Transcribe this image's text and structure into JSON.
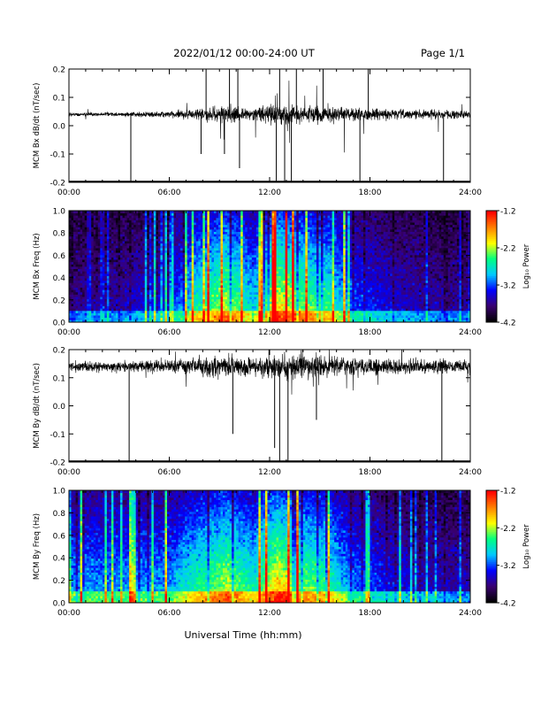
{
  "header": {
    "title": "2022/01/12  00:00-24:00 UT",
    "page": "Page 1/1"
  },
  "xlabel": "Universal Time (hh:mm)",
  "time_ticks": [
    "00:00",
    "06:00",
    "12:00",
    "18:00",
    "24:00"
  ],
  "colorbar": {
    "label": "Log₁₀ Power",
    "ticks": [
      "-1.2",
      "-2.2",
      "-3.2",
      "-4.2"
    ],
    "range": [
      -4.2,
      -1.2
    ],
    "colormap": [
      "#000000",
      "#3a0070",
      "#0000ff",
      "#00c8ff",
      "#00ff80",
      "#ffff00",
      "#ff8000",
      "#ff0000"
    ]
  },
  "chart_data": [
    {
      "type": "line",
      "name": "bx_dbdt",
      "ylabel": "MCM Bx dB/dt (nT/sec)",
      "xlim": [
        0,
        24
      ],
      "ylim": [
        -0.2,
        0.2
      ],
      "yticks": [
        "-0.2",
        "-0.1",
        "0.0",
        "0.1",
        "0.2"
      ],
      "baseline": 0.04,
      "noise": 0.015,
      "activity": [
        [
          0,
          0.3
        ],
        [
          3,
          0.3
        ],
        [
          6,
          0.5
        ],
        [
          8,
          1.0
        ],
        [
          9.5,
          1.4
        ],
        [
          11,
          0.9
        ],
        [
          12.5,
          1.6
        ],
        [
          14,
          1.3
        ],
        [
          15.5,
          1.2
        ],
        [
          17,
          1.0
        ],
        [
          19,
          0.8
        ],
        [
          21,
          0.7
        ],
        [
          24,
          0.6
        ]
      ],
      "spikes": [
        [
          3.7,
          -0.2
        ],
        [
          7.9,
          -0.1
        ],
        [
          8.2,
          0.2
        ],
        [
          9.3,
          -0.1
        ],
        [
          9.6,
          0.2
        ],
        [
          10.1,
          0.2
        ],
        [
          10.2,
          -0.15
        ],
        [
          12.4,
          -0.2
        ],
        [
          12.6,
          0.2
        ],
        [
          12.9,
          -0.2
        ],
        [
          13.3,
          -0.2
        ],
        [
          13.6,
          0.2
        ],
        [
          15.2,
          0.2
        ],
        [
          17.4,
          -0.2
        ],
        [
          17.9,
          0.2
        ],
        [
          22.4,
          -0.2
        ]
      ]
    },
    {
      "type": "heatmap",
      "name": "bx_freq",
      "ylabel": "MCM Bx Freq (Hz)",
      "xlim": [
        0,
        24
      ],
      "ylim": [
        0,
        1
      ],
      "yticks": [
        "0.0",
        "0.2",
        "0.4",
        "0.6",
        "0.8",
        "1.0"
      ],
      "zlim": [
        -4.2,
        -1.2
      ],
      "activity": [
        [
          0,
          0.3
        ],
        [
          3,
          0.35
        ],
        [
          6,
          0.5
        ],
        [
          7.5,
          0.9
        ],
        [
          9.5,
          1.2
        ],
        [
          11,
          0.8
        ],
        [
          12.5,
          1.3
        ],
        [
          14,
          1.1
        ],
        [
          15.5,
          1.0
        ],
        [
          17,
          0.6
        ],
        [
          19,
          0.45
        ],
        [
          21,
          0.35
        ],
        [
          24,
          0.3
        ]
      ]
    },
    {
      "type": "line",
      "name": "by_dbdt",
      "ylabel": "MCM By dB/dt (nT/sec)",
      "xlim": [
        0,
        24
      ],
      "ylim": [
        -0.2,
        0.2
      ],
      "yticks": [
        "-0.2",
        "-0.1",
        "0.0",
        "0.1",
        "0.2"
      ],
      "baseline": 0.14,
      "noise": 0.02,
      "activity": [
        [
          0,
          0.6
        ],
        [
          3,
          0.6
        ],
        [
          6,
          0.8
        ],
        [
          8,
          1.0
        ],
        [
          9.5,
          1.3
        ],
        [
          11,
          1.0
        ],
        [
          12.5,
          1.5
        ],
        [
          14,
          1.3
        ],
        [
          15.5,
          1.2
        ],
        [
          17,
          1.0
        ],
        [
          19,
          1.0
        ],
        [
          21,
          0.9
        ],
        [
          24,
          0.8
        ]
      ],
      "spikes": [
        [
          3.6,
          -0.2
        ],
        [
          9.8,
          -0.1
        ],
        [
          12.3,
          -0.15
        ],
        [
          12.6,
          -0.2
        ],
        [
          13.1,
          -0.2
        ],
        [
          14.8,
          -0.05
        ],
        [
          22.3,
          -0.2
        ]
      ]
    },
    {
      "type": "heatmap",
      "name": "by_freq",
      "ylabel": "MCM By Freq (Hz)",
      "xlim": [
        0,
        24
      ],
      "ylim": [
        0,
        1
      ],
      "yticks": [
        "0.0",
        "0.2",
        "0.4",
        "0.6",
        "0.8",
        "1.0"
      ],
      "zlim": [
        -4.2,
        -1.2
      ],
      "activity": [
        [
          0,
          0.7
        ],
        [
          3,
          0.7
        ],
        [
          6,
          0.7
        ],
        [
          7.5,
          0.95
        ],
        [
          9.5,
          1.2
        ],
        [
          11,
          0.9
        ],
        [
          12.5,
          1.35
        ],
        [
          14,
          1.1
        ],
        [
          15.5,
          1.0
        ],
        [
          17,
          0.65
        ],
        [
          19,
          0.5
        ],
        [
          21,
          0.4
        ],
        [
          24,
          0.35
        ]
      ]
    }
  ]
}
